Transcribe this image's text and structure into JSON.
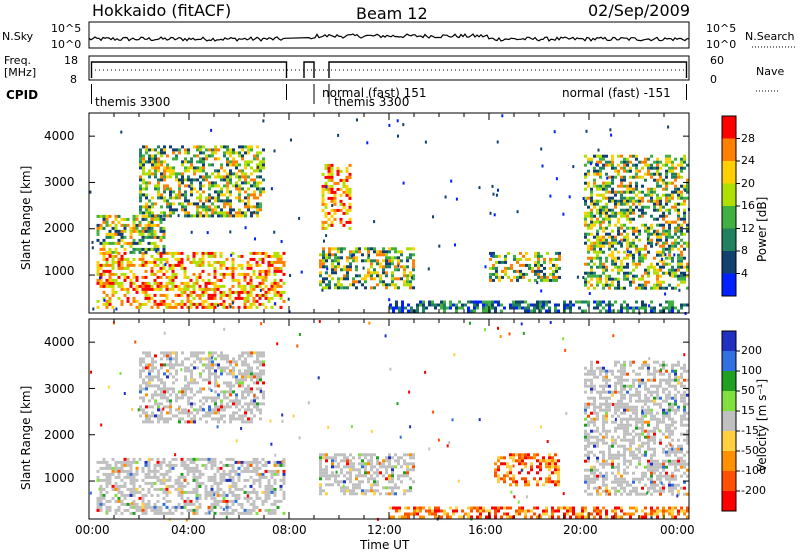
{
  "header": {
    "title": "Hokkaido (fitACF)",
    "beam": "Beam 12",
    "date": "02/Sep/2009"
  },
  "top_panels": {
    "nsky_label": "N.Sky",
    "nsky_ticks": [
      "10^5",
      "10^0"
    ],
    "nsearch_label": "N.Search",
    "freq_label_line1": "Freq.",
    "freq_label_line2": "[MHz]",
    "freq_ticks": [
      "18",
      "8"
    ],
    "nave_ticks": [
      "60",
      "0"
    ],
    "nave_label": "Nave",
    "cpid_label": "CPID",
    "cpid_entries": [
      {
        "text": "themis 3300"
      },
      {
        "text": "normal (fast) 151"
      },
      {
        "text": "themis 3300"
      },
      {
        "text": "normal (fast) -151"
      }
    ]
  },
  "chart_data": [
    {
      "type": "heatmap",
      "name": "Power",
      "ylabel": "Slant Range [km]",
      "yticks": [
        "4000",
        "3000",
        "2000",
        "1000"
      ],
      "ylim": [
        180,
        4500
      ],
      "colorbar_label": "Power [dB]",
      "colorbar_ticks": [
        "28",
        "24",
        "20",
        "16",
        "12",
        "8",
        "4"
      ],
      "colorbar_colors": [
        "#ff0000",
        "#ff8000",
        "#ffd000",
        "#b0e000",
        "#40b040",
        "#208060",
        "#104070",
        "#0020ff"
      ],
      "echo_regions": [
        {
          "t0": 0.3,
          "t1": 7.8,
          "r0": 300,
          "r1": 1500,
          "level": "high"
        },
        {
          "t0": 0.3,
          "t1": 3.0,
          "r0": 1500,
          "r1": 2300,
          "level": "medium"
        },
        {
          "t0": 2.0,
          "t1": 7.0,
          "r0": 2300,
          "r1": 3800,
          "level": "medium"
        },
        {
          "t0": 9.2,
          "t1": 13.0,
          "r0": 700,
          "r1": 1600,
          "level": "medium"
        },
        {
          "t0": 9.3,
          "t1": 10.5,
          "r0": 2000,
          "r1": 3400,
          "level": "high"
        },
        {
          "t0": 16.0,
          "t1": 18.8,
          "r0": 900,
          "r1": 1500,
          "level": "medium"
        },
        {
          "t0": 19.8,
          "t1": 24.0,
          "r0": 700,
          "r1": 3600,
          "level": "medium"
        },
        {
          "t0": 12.0,
          "t1": 24.0,
          "r0": 200,
          "r1": 450,
          "level": "low"
        }
      ]
    },
    {
      "type": "heatmap",
      "name": "Velocity",
      "ylabel": "Slant Range [km]",
      "yticks": [
        "4000",
        "3000",
        "2000",
        "1000"
      ],
      "ylim": [
        180,
        4500
      ],
      "xlabel": "Time UT",
      "xticks": [
        "00:00",
        "04:00",
        "08:00",
        "12:00",
        "16:00",
        "20:00",
        "00:00"
      ],
      "xlim": [
        0,
        24
      ],
      "colorbar_label": "Velocity [m s⁻¹]",
      "colorbar_ticks": [
        "200",
        "100",
        "50",
        "15",
        "-15",
        "-50",
        "-100",
        "-200"
      ],
      "colorbar_colors": [
        "#2030c0",
        "#3070e0",
        "#20a020",
        "#80e040",
        "#c0c0c0",
        "#ffd040",
        "#ff9000",
        "#ff5000",
        "#ff0000"
      ],
      "echo_regions": [
        {
          "t0": 0.3,
          "t1": 7.8,
          "r0": 300,
          "r1": 1500,
          "level": "gray"
        },
        {
          "t0": 2.0,
          "t1": 7.0,
          "r0": 2300,
          "r1": 3800,
          "level": "gray"
        },
        {
          "t0": 9.2,
          "t1": 13.0,
          "r0": 700,
          "r1": 1600,
          "level": "gray"
        },
        {
          "t0": 16.2,
          "t1": 18.8,
          "r0": 900,
          "r1": 1600,
          "level": "negative"
        },
        {
          "t0": 19.8,
          "t1": 24.0,
          "r0": 700,
          "r1": 3600,
          "level": "gray"
        },
        {
          "t0": 12.0,
          "t1": 24.0,
          "r0": 200,
          "r1": 450,
          "level": "negative"
        }
      ]
    }
  ]
}
